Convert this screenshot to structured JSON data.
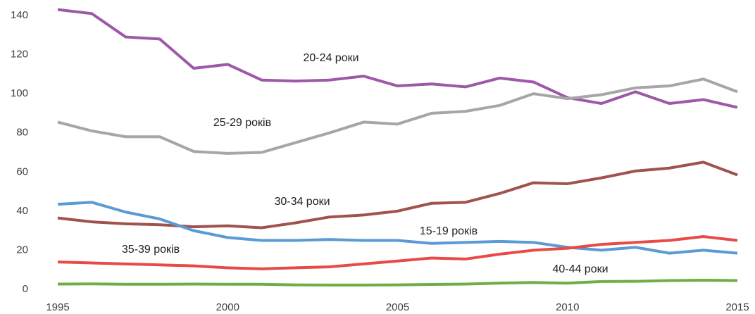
{
  "chart_data": {
    "type": "line",
    "x": [
      1995,
      1996,
      1997,
      1998,
      1999,
      2000,
      2001,
      2002,
      2003,
      2004,
      2005,
      2006,
      2007,
      2008,
      2009,
      2010,
      2011,
      2012,
      2013,
      2014,
      2015
    ],
    "xlim": [
      1995,
      2015
    ],
    "xticks": [
      1995,
      2000,
      2005,
      2010,
      2015
    ],
    "ylim": [
      0,
      140
    ],
    "yticks": [
      0,
      20,
      40,
      60,
      80,
      100,
      120,
      140
    ],
    "grid": false,
    "series": [
      {
        "name": "20-24 роки",
        "color": "#9e58a8",
        "values": [
          143,
          141,
          129,
          128,
          113,
          115,
          107,
          106.5,
          107,
          109,
          104,
          105,
          103.5,
          108,
          106,
          98,
          95,
          101,
          95,
          97,
          93
        ]
      },
      {
        "name": "25-29 років",
        "color": "#a6a6a6",
        "values": [
          85.5,
          81,
          78,
          78,
          70.5,
          69.5,
          70,
          75,
          80,
          85.5,
          84.5,
          90,
          91,
          94,
          100,
          97.5,
          99.5,
          103,
          104,
          107.5,
          101
        ]
      },
      {
        "name": "30-34 роки",
        "color": "#a0524f",
        "values": [
          36.5,
          34.5,
          33.5,
          33,
          32,
          32.5,
          31.5,
          34,
          37,
          38,
          40,
          44,
          44.5,
          49,
          54.5,
          54,
          57,
          60.5,
          62,
          65,
          58.5
        ]
      },
      {
        "name": "15-19 років",
        "color": "#5b9bd5",
        "values": [
          43.5,
          44.5,
          39.5,
          36,
          30,
          26.5,
          25,
          25,
          25.5,
          25,
          25,
          23.5,
          24,
          24.5,
          24,
          21.5,
          20,
          21.5,
          18.5,
          20,
          18.5
        ]
      },
      {
        "name": "35-39 років",
        "color": "#e84a45",
        "values": [
          14,
          13.5,
          13,
          12.5,
          12,
          11,
          10.5,
          11,
          11.5,
          13,
          14.5,
          16,
          15.5,
          18,
          20,
          21,
          23,
          24,
          25,
          27,
          25
        ]
      },
      {
        "name": "40-44 роки",
        "color": "#70ad47",
        "values": [
          2.7,
          2.8,
          2.6,
          2.6,
          2.7,
          2.6,
          2.6,
          2.3,
          2.2,
          2.2,
          2.3,
          2.5,
          2.7,
          3.2,
          3.5,
          3.2,
          4,
          4.1,
          4.5,
          4.7,
          4.5
        ]
      }
    ]
  }
}
